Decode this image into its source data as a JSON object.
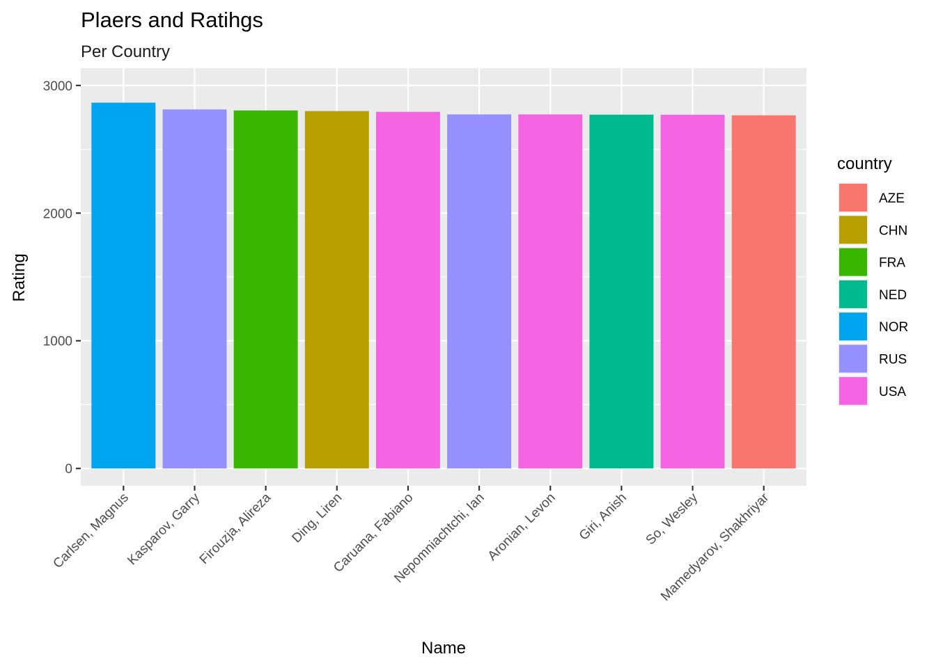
{
  "chart_data": {
    "type": "bar",
    "title": "Plaers and Ratihgs",
    "subtitle": "Per Country",
    "xlabel": "Name",
    "ylabel": "Rating",
    "ylim": [
      -135,
      3000
    ],
    "yticks": [
      0,
      1000,
      2000,
      3000
    ],
    "grid": true,
    "legend": {
      "title": "country",
      "position": "right",
      "entries": [
        {
          "label": "AZE",
          "color": "#F8766D"
        },
        {
          "label": "CHN",
          "color": "#B79F00"
        },
        {
          "label": "FRA",
          "color": "#39B600"
        },
        {
          "label": "NED",
          "color": "#00BA8F"
        },
        {
          "label": "NOR",
          "color": "#00A5EF"
        },
        {
          "label": "RUS",
          "color": "#9590FF"
        },
        {
          "label": "USA",
          "color": "#F564E3"
        }
      ]
    },
    "categories": [
      "Carlsen, Magnus",
      "Kasparov, Garry",
      "Firouzja, Alireza",
      "Ding, Liren",
      "Caruana, Fabiano",
      "Nepomniachtchi, Ian",
      "Aronian, Levon",
      "Giri, Anish",
      "So, Wesley",
      "Mamedyarov, Shakhriyar"
    ],
    "values": [
      2865,
      2812,
      2804,
      2799,
      2793,
      2773,
      2773,
      2771,
      2770,
      2766
    ],
    "countries": [
      "NOR",
      "RUS",
      "FRA",
      "CHN",
      "USA",
      "RUS",
      "USA",
      "NED",
      "USA",
      "AZE"
    ]
  }
}
